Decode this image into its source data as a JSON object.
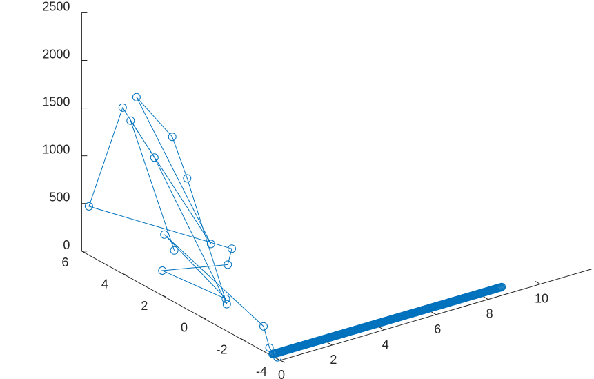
{
  "chart_data": {
    "type": "line3d",
    "marker": "circle",
    "grid": false,
    "colors": {
      "series": "#0072BD",
      "axis": "#262626"
    },
    "x_axis": {
      "ticks": [
        0,
        2,
        4,
        6,
        8,
        10
      ],
      "tick_labels": [
        "0",
        "2",
        "4",
        "6",
        "8",
        "10"
      ]
    },
    "y_axis": {
      "ticks": [
        -4,
        -2,
        0,
        2,
        4,
        6
      ],
      "tick_labels": [
        "-4",
        "-2",
        "0",
        "2",
        "4",
        "6"
      ]
    },
    "z_axis": {
      "ticks": [
        0,
        500,
        1000,
        1500,
        2000,
        2500
      ],
      "tick_labels": [
        "0",
        "500",
        "1000",
        "1500",
        "2000",
        "2500"
      ]
    },
    "series": [
      {
        "dense_segment": {
          "from": [
            0.1,
            -3.5,
            0
          ],
          "to": [
            8.9,
            -3.5,
            0
          ],
          "approx_points": 300
        },
        "points": [
          {
            "x": 0.05,
            "y": 1.4,
            "z": 530
          },
          {
            "x": 0.05,
            "y": 3.6,
            "z": 1640
          },
          {
            "x": 0.05,
            "y": -0.45,
            "z": 810
          },
          {
            "x": 0.05,
            "y": 3.3,
            "z": 1920
          },
          {
            "x": 0.05,
            "y": 1.5,
            "z": 1710
          },
          {
            "x": 0.05,
            "y": 0.75,
            "z": 1360
          },
          {
            "x": 0.05,
            "y": -1.25,
            "z": 270
          },
          {
            "x": 0.05,
            "y": 2.4,
            "z": 1390
          },
          {
            "x": 0.05,
            "y": 4.0,
            "z": 1730
          },
          {
            "x": 0.05,
            "y": 5.7,
            "z": 500
          },
          {
            "x": 0.05,
            "y": -1.5,
            "z": 880
          },
          {
            "x": 0.05,
            "y": -1.3,
            "z": 690
          },
          {
            "x": 0.05,
            "y": 2.0,
            "z": 250
          },
          {
            "x": 0.05,
            "y": -1.2,
            "z": 320
          },
          {
            "x": 0.05,
            "y": 1.9,
            "z": 640
          },
          {
            "x": 0.05,
            "y": -3.1,
            "z": 250
          },
          {
            "x": 0.05,
            "y": -3.4,
            "z": 60
          },
          {
            "x": 0.05,
            "y": -3.6,
            "z": 20
          },
          {
            "x": 0.05,
            "y": -3.8,
            "z": 5
          },
          {
            "x": 0.1,
            "y": -3.5,
            "z": 0
          }
        ]
      }
    ]
  }
}
